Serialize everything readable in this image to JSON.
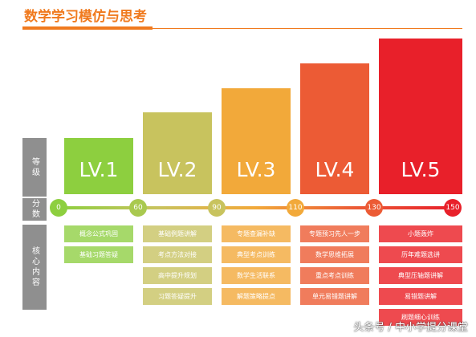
{
  "title": "数学学习模仿与思考",
  "row_labels": [
    "等级",
    "分数",
    "核心内容"
  ],
  "scores": [
    0,
    60,
    90,
    110,
    130,
    150
  ],
  "levels": [
    {
      "label": "LV.1",
      "items": [
        "概念公式巩固",
        "基础习题答疑"
      ]
    },
    {
      "label": "LV.2",
      "items": [
        "基础例题讲解",
        "考点方法对接",
        "高中提升规划",
        "习题答疑提升"
      ]
    },
    {
      "label": "LV.3",
      "items": [
        "专题查漏补缺",
        "典型考点训练",
        "数学生活联系",
        "解题策略提点"
      ]
    },
    {
      "label": "LV.4",
      "items": [
        "专题预习先人一步",
        "数学思维拓展",
        "重点考点训练",
        "单元易错题讲解"
      ]
    },
    {
      "label": "LV.5",
      "items": [
        "小题轰炸",
        "历年难题选讲",
        "典型压轴题讲解",
        "易错题讲解",
        "刷题细心训练"
      ]
    }
  ],
  "watermark": "头条号 / 中小学提分课堂"
}
